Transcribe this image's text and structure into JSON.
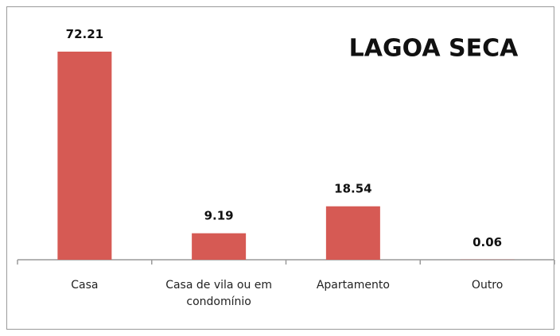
{
  "chart_data": {
    "type": "bar",
    "title": "LAGOA SECA",
    "categories": [
      "Casa",
      "Casa de vila ou em condomínio",
      "Apartamento",
      "Outro"
    ],
    "values": [
      72.21,
      9.19,
      18.54,
      0.06
    ],
    "value_labels": [
      "72.21",
      "9.19",
      "18.54",
      "0.06"
    ],
    "color": "#d65a54"
  }
}
